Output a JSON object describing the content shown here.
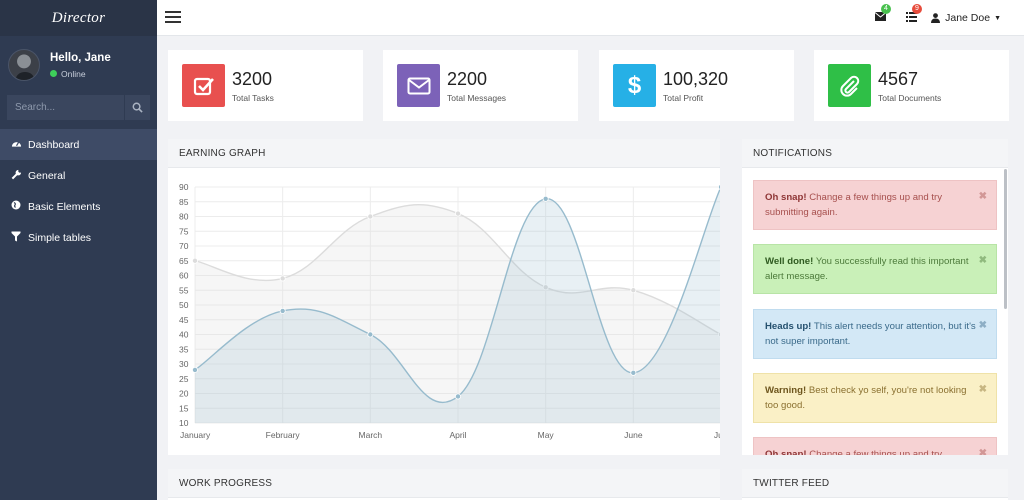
{
  "sidebar": {
    "brand": "Director",
    "user": {
      "greeting": "Hello, Jane",
      "status": "Online"
    },
    "search_placeholder": "Search...",
    "items": [
      {
        "label": "Dashboard",
        "icon": "dashboard-icon"
      },
      {
        "label": "General",
        "icon": "wrench-icon"
      },
      {
        "label": "Basic Elements",
        "icon": "globe-icon"
      },
      {
        "label": "Simple tables",
        "icon": "filter-icon"
      }
    ]
  },
  "topbar": {
    "messages_badge": "4",
    "tasks_badge": "9",
    "user_name": "Jane Doe",
    "colors": {
      "messages_badge": "#48c04e",
      "tasks_badge": "#e74c3c"
    }
  },
  "stats": [
    {
      "value": "3200",
      "label": "Total Tasks",
      "color": "#e8504f",
      "icon": "check-square-icon"
    },
    {
      "value": "2200",
      "label": "Total Messages",
      "color": "#7c62b8",
      "icon": "envelope-icon"
    },
    {
      "value": "100,320",
      "label": "Total Profit",
      "color": "#26b0e6",
      "icon": "dollar-icon"
    },
    {
      "value": "4567",
      "label": "Total Documents",
      "color": "#2fbf47",
      "icon": "paperclip-icon"
    }
  ],
  "panels": {
    "earning_title": "EARNING GRAPH",
    "notifications_title": "NOTIFICATIONS",
    "work_progress_title": "WORK PROGRESS",
    "twitter_title": "TWITTER FEED"
  },
  "alerts": [
    {
      "type": "danger",
      "strong": "Oh snap!",
      "text": " Change a few things up and try submitting again."
    },
    {
      "type": "success",
      "strong": "Well done!",
      "text": " You successfully read this important alert message."
    },
    {
      "type": "info",
      "strong": "Heads up!",
      "text": " This alert needs your attention, but it's not super important."
    },
    {
      "type": "warning",
      "strong": "Warning!",
      "text": " Best check yo self, you're not looking too good."
    },
    {
      "type": "danger",
      "strong": "Oh snap!",
      "text": " Change a few things up and try submitting again."
    }
  ],
  "chart_data": {
    "type": "area",
    "categories": [
      "January",
      "February",
      "March",
      "April",
      "May",
      "June",
      "July"
    ],
    "series": [
      {
        "values": [
          65,
          59,
          80,
          81,
          56,
          55,
          40
        ],
        "color": "#dcdcdc"
      },
      {
        "values": [
          28,
          48,
          40,
          19,
          86,
          27,
          90
        ],
        "color": "#97bbcd"
      }
    ],
    "yticks": [
      10,
      15,
      20,
      25,
      30,
      35,
      40,
      45,
      50,
      55,
      60,
      65,
      70,
      75,
      80,
      85,
      90
    ],
    "ylim": [
      10,
      90
    ],
    "grid": true
  }
}
